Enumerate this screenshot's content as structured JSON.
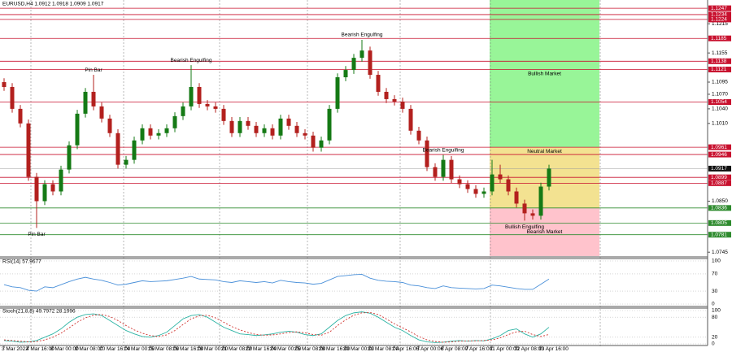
{
  "chart_data": {
    "type": "candlestick",
    "title": "EURUSD,H4  1.0912 1.0918 1.0909 1.0917",
    "categories": [
      "3 Mar 2022",
      null,
      null,
      "4 Mar 16:00",
      null,
      null,
      "8 Mar 00:00",
      null,
      null,
      "9 Mar 08:00",
      null,
      null,
      "10 Mar 16:00",
      null,
      null,
      "14 Mar 00:00",
      null,
      null,
      "15 Mar 08:00",
      null,
      null,
      "16 Mar 16:00",
      null,
      null,
      "18 Mar 00:00",
      null,
      null,
      "21 Mar 08:00",
      null,
      null,
      "22 Mar 16:00",
      null,
      null,
      "24 Mar 00:00",
      null,
      null,
      "25 Mar 08:00",
      null,
      null,
      "28 Mar 16:00",
      null,
      null,
      "30 Mar 00:00",
      null,
      null,
      "31 Mar 08:00",
      null,
      null,
      "1 Apr 16:00",
      null,
      null,
      "5 Apr 00:00",
      null,
      null,
      "6 Apr 08:00",
      null,
      null,
      "7 Apr 16:00",
      null,
      null,
      "11 Apr 00:00",
      null,
      null,
      "12 Apr 08:00",
      null,
      null,
      "13 Apr 16:00",
      null
    ],
    "open": [
      1.1095,
      1.1085,
      1.104,
      1.101,
      1.09,
      1.085,
      1.0885,
      1.087,
      1.0915,
      1.0965,
      1.103,
      1.1075,
      1.1045,
      1.102,
      1.099,
      1.0925,
      1.0935,
      1.0975,
      1.1,
      1.0985,
      1.099,
      1.1,
      1.1025,
      1.1045,
      1.1085,
      1.105,
      1.1045,
      1.104,
      1.1015,
      1.099,
      1.1015,
      1.1005,
      1.099,
      1.1,
      1.0985,
      1.102,
      1.1005,
      1.099,
      1.0985,
      1.096,
      1.0975,
      1.104,
      1.1105,
      1.112,
      1.1145,
      1.116,
      1.111,
      1.1075,
      1.106,
      1.1055,
      1.104,
      1.0995,
      1.0975,
      1.092,
      1.09,
      1.0935,
      1.0895,
      1.0885,
      1.0875,
      1.0865,
      1.087,
      1.0905,
      1.0895,
      1.087,
      1.0845,
      1.0825,
      1.082,
      1.088
    ],
    "high": [
      1.1103,
      1.1093,
      1.1048,
      1.1018,
      1.0908,
      1.0893,
      1.0893,
      1.0923,
      1.0973,
      1.1038,
      1.1083,
      1.111,
      1.1053,
      1.1028,
      1.0998,
      1.0943,
      1.0983,
      1.1008,
      1.1008,
      1.0998,
      1.1008,
      1.1033,
      1.1053,
      1.113,
      1.1093,
      1.1058,
      1.1053,
      1.1048,
      1.1023,
      1.1023,
      1.1023,
      1.1013,
      1.1008,
      1.1008,
      1.1028,
      1.1028,
      1.1013,
      1.0998,
      1.0993,
      1.0983,
      1.1048,
      1.1113,
      1.1128,
      1.1153,
      1.1182,
      1.1168,
      1.1118,
      1.1083,
      1.1068,
      1.1063,
      1.1048,
      1.1003,
      1.0983,
      1.0928,
      1.0945,
      1.0943,
      1.0903,
      1.0893,
      1.0883,
      1.0878,
      1.0935,
      1.0925,
      1.0903,
      1.0878,
      1.0853,
      1.0833,
      1.0888,
      1.0925
    ],
    "low": [
      1.1077,
      1.1032,
      1.1002,
      1.0892,
      1.0795,
      1.0842,
      1.0862,
      1.0862,
      1.0907,
      1.0957,
      1.1022,
      1.1037,
      1.1012,
      1.0982,
      1.0917,
      1.0917,
      1.0927,
      1.0967,
      1.0977,
      1.0977,
      1.0982,
      1.0992,
      1.1017,
      1.1037,
      1.1042,
      1.1037,
      1.1032,
      1.1007,
      1.0982,
      1.0982,
      1.0997,
      1.0982,
      1.0982,
      1.0977,
      1.0977,
      1.0997,
      1.0982,
      1.0977,
      1.0952,
      1.0952,
      1.0967,
      1.1032,
      1.1097,
      1.1112,
      1.1137,
      1.1102,
      1.1067,
      1.1052,
      1.1047,
      1.1032,
      1.0987,
      1.0967,
      1.0912,
      1.0892,
      1.0892,
      1.0887,
      1.0877,
      1.0867,
      1.0857,
      1.0857,
      1.0862,
      1.0887,
      1.0862,
      1.0837,
      1.081,
      1.0812,
      1.0812,
      1.0872
    ],
    "close": [
      1.1085,
      1.104,
      1.101,
      1.09,
      1.085,
      1.0885,
      1.087,
      1.0915,
      1.0965,
      1.103,
      1.1075,
      1.1045,
      1.102,
      1.099,
      1.0925,
      1.0935,
      1.0975,
      1.1,
      1.0985,
      1.099,
      1.1,
      1.1025,
      1.1045,
      1.1085,
      1.105,
      1.1045,
      1.104,
      1.1015,
      1.099,
      1.1015,
      1.1005,
      1.099,
      1.1,
      1.0985,
      1.102,
      1.1005,
      1.099,
      1.0985,
      1.096,
      1.0975,
      1.104,
      1.1105,
      1.112,
      1.1145,
      1.116,
      1.111,
      1.1075,
      1.106,
      1.1055,
      1.104,
      1.0995,
      1.0975,
      1.092,
      1.09,
      1.0935,
      1.0895,
      1.0885,
      1.0875,
      1.0865,
      1.087,
      1.0905,
      1.0895,
      1.087,
      1.0845,
      1.0825,
      1.082,
      1.088,
      1.0917
    ],
    "bull_color": "#157a15",
    "bear_color": "#b3201e",
    "ylim": [
      1.0737,
      1.1264
    ],
    "yticks": [
      1.0745,
      {
        "value": 1.085,
        "label": "1.0850"
      },
      {
        "value": 1.101,
        "label": "1.1010"
      },
      {
        "value": 1.104,
        "label": "1.1040"
      },
      {
        "value": 1.107,
        "label": "1.1070"
      },
      1.1095,
      1.1155,
      1.1215
    ],
    "levels": [
      {
        "value": 1.1247,
        "color": "#c8102e"
      },
      {
        "value": 1.1234,
        "color": "#c8102e"
      },
      {
        "value": 1.1224,
        "color": "#c8102e"
      },
      {
        "value": 1.1185,
        "color": "#c8102e"
      },
      {
        "value": 1.1138,
        "color": "#c8102e"
      },
      {
        "value": 1.1121,
        "color": "#c8102e"
      },
      {
        "value": 1.1054,
        "color": "#c8102e"
      },
      {
        "value": 1.0961,
        "color": "#c8102e"
      },
      {
        "value": 1.0946,
        "color": "#c8102e"
      },
      {
        "value": 1.0899,
        "color": "#c8102e"
      },
      {
        "value": 1.0887,
        "color": "#c8102e"
      },
      {
        "value": 1.0836,
        "color": "#2e8b2e"
      },
      {
        "value": 1.0805,
        "color": "#2e8b2e"
      },
      {
        "value": 1.0781,
        "color": "#2e8b2e"
      }
    ],
    "current_price": 1.0917,
    "zone_start": "11 Apr 00:00",
    "zones": [
      {
        "label": "Bullish Market",
        "from": 1.0961,
        "to": 1.1264,
        "color": "#98f598",
        "label_position": "center"
      },
      {
        "label": "Neutral Market",
        "from": 1.0836,
        "to": 1.0961,
        "color": "#f3e291",
        "label_position": "top"
      },
      {
        "label": "Bearish Market",
        "from": 1.0737,
        "to": 1.0836,
        "color": "#ffc3cc",
        "label_position": "center"
      }
    ],
    "annotations": [
      {
        "text": "Pin Bar",
        "candle": 11,
        "position": "above"
      },
      {
        "text": "Pin Bar",
        "candle": 4,
        "position": "below"
      },
      {
        "text": "Bearish Engulfing",
        "candle": 23,
        "position": "above"
      },
      {
        "text": "Bearish Engulfing",
        "candle": 44,
        "position": "above"
      },
      {
        "text": "Bearish Engulfing",
        "candle": 54,
        "position": "above"
      },
      {
        "text": "Bullish Engulfing",
        "candle": 64,
        "position": "below"
      }
    ],
    "indicators": [
      {
        "type": "line",
        "title": "RSI(14) 57.9677",
        "ylim": [
          0,
          100
        ],
        "yticks": [
          0,
          30,
          70,
          100
        ],
        "series": [
          {
            "color": "#4a90d9",
            "style": "solid",
            "values": [
              45,
              40,
              38,
              32,
              30,
              40,
              38,
              45,
              52,
              58,
              62,
              58,
              55,
              50,
              44,
              46,
              50,
              54,
              52,
              53,
              54,
              57,
              60,
              64,
              58,
              57,
              56,
              52,
              50,
              54,
              52,
              50,
              52,
              49,
              55,
              52,
              50,
              49,
              46,
              48,
              56,
              64,
              66,
              68,
              69,
              60,
              55,
              53,
              52,
              50,
              44,
              42,
              38,
              36,
              42,
              38,
              37,
              36,
              35,
              36,
              44,
              42,
              39,
              36,
              34,
              34,
              46,
              57.9677
            ]
          }
        ]
      },
      {
        "type": "line",
        "title": "Stoch(21,8,8) 49.7972 28.1996",
        "ylim": [
          0,
          100
        ],
        "yticks": [
          0,
          20,
          80,
          100
        ],
        "series": [
          {
            "color": "#2bb3a3",
            "style": "solid",
            "values": [
              10,
              8,
              5,
              6,
              10,
              20,
              30,
              45,
              65,
              80,
              88,
              90,
              85,
              70,
              55,
              40,
              30,
              22,
              20,
              25,
              35,
              55,
              75,
              85,
              88,
              80,
              65,
              50,
              40,
              30,
              28,
              25,
              27,
              30,
              35,
              38,
              35,
              28,
              25,
              30,
              50,
              70,
              85,
              93,
              96,
              92,
              80,
              65,
              50,
              40,
              25,
              12,
              6,
              4,
              5,
              8,
              10,
              8,
              10,
              9,
              15,
              25,
              40,
              45,
              30,
              20,
              30,
              49.7972
            ]
          },
          {
            "color": "#d0312d",
            "style": "dashed",
            "values": [
              12,
              10,
              8,
              6,
              7,
              12,
              20,
              32,
              48,
              65,
              78,
              86,
              88,
              82,
              70,
              55,
              42,
              32,
              25,
              22,
              27,
              40,
              58,
              75,
              84,
              86,
              78,
              65,
              52,
              42,
              34,
              28,
              26,
              27,
              30,
              34,
              36,
              33,
              28,
              26,
              35,
              55,
              72,
              86,
              93,
              94,
              88,
              75,
              60,
              48,
              36,
              22,
              12,
              7,
              5,
              6,
              8,
              9,
              9,
              10,
              12,
              18,
              28,
              36,
              38,
              28,
              22,
              28.1996
            ]
          }
        ]
      }
    ]
  }
}
